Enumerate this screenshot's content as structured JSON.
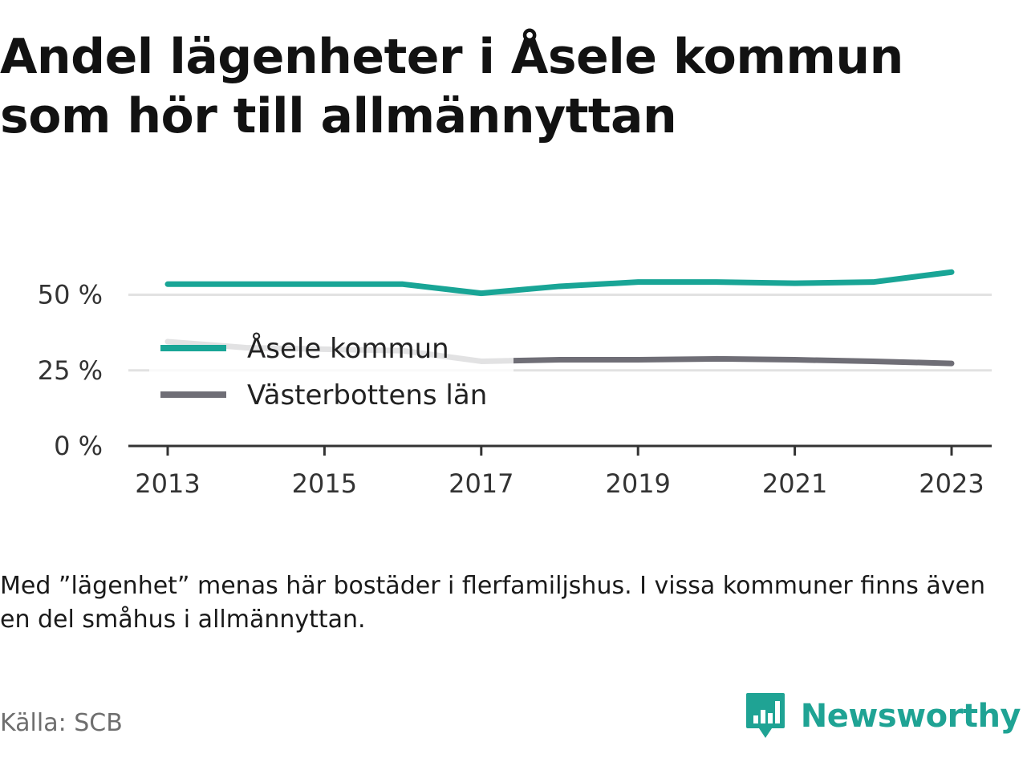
{
  "title": "Andel lägenheter i Åsele kommun som hör till allmännyttan",
  "note": "Med ”lägenhet” menas här bostäder i flerfamiljshus. I vissa kommuner finns även en del småhus i allmännyttan.",
  "source": "Källa: SCB",
  "brand": {
    "name": "Newsworthy",
    "icon": "bar-chart-speech-bubble-icon",
    "color": "#1fa394"
  },
  "chart_data": {
    "type": "line",
    "x": [
      2013,
      2014,
      2015,
      2016,
      2017,
      2018,
      2019,
      2020,
      2021,
      2022,
      2023
    ],
    "x_ticks": [
      2013,
      2015,
      2017,
      2019,
      2021,
      2023
    ],
    "x_tick_labels": [
      "2013",
      "2015",
      "2017",
      "2019",
      "2021",
      "2023"
    ],
    "y_ticks": [
      0,
      25,
      50
    ],
    "y_tick_labels": [
      "0 %",
      "25 %",
      "50 %"
    ],
    "ylim": [
      0,
      57
    ],
    "grid": true,
    "legend_position": "left-inside",
    "series": [
      {
        "name": "Åsele kommun",
        "color": "#19a596",
        "values": [
          53.5,
          53.5,
          53.5,
          53.5,
          50.5,
          52.8,
          54.2,
          54.2,
          53.8,
          54.2,
          57.5
        ]
      },
      {
        "name": "Västerbottens län",
        "color": "#6f6e76",
        "values": [
          34.5,
          32.5,
          32,
          31.5,
          28,
          28.5,
          28.5,
          28.8,
          28.5,
          28,
          27.3
        ]
      }
    ]
  }
}
